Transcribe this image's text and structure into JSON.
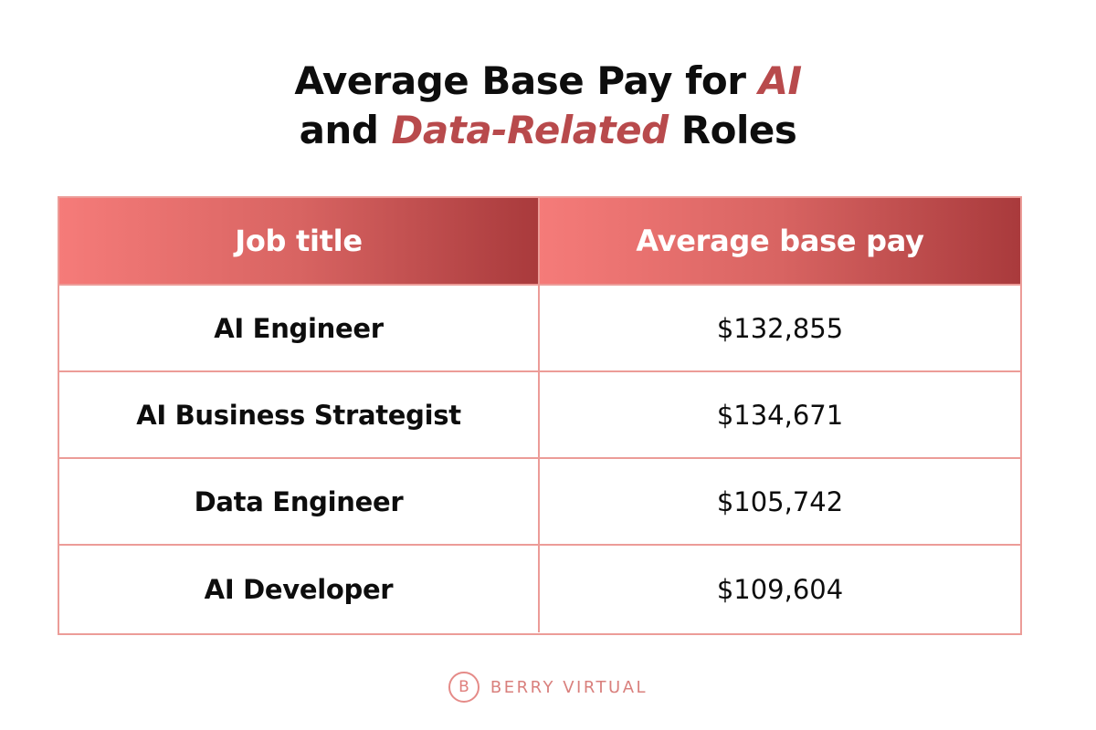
{
  "title": {
    "part1": "Average Base Pay for ",
    "accent1": "AI",
    "part2": "and ",
    "accent2": "Data-Related",
    "part3": " Roles"
  },
  "colors": {
    "accent": "#b84a4c",
    "header_gradient_start": "#f57b79",
    "header_gradient_end": "#a93a3c",
    "border": "#ec9c98"
  },
  "chart_data": {
    "type": "table",
    "title": "Average Base Pay for AI and Data-Related Roles",
    "columns": [
      "Job title",
      "Average base pay"
    ],
    "rows": [
      {
        "job": "AI Engineer",
        "pay": "$132,855"
      },
      {
        "job": "AI Business Strategist",
        "pay": "$134,671"
      },
      {
        "job": "Data Engineer",
        "pay": "$105,742"
      },
      {
        "job": "AI Developer",
        "pay": "$109,604"
      }
    ]
  },
  "logo": {
    "mark": "B",
    "text": "BERRY VIRTUAL"
  }
}
